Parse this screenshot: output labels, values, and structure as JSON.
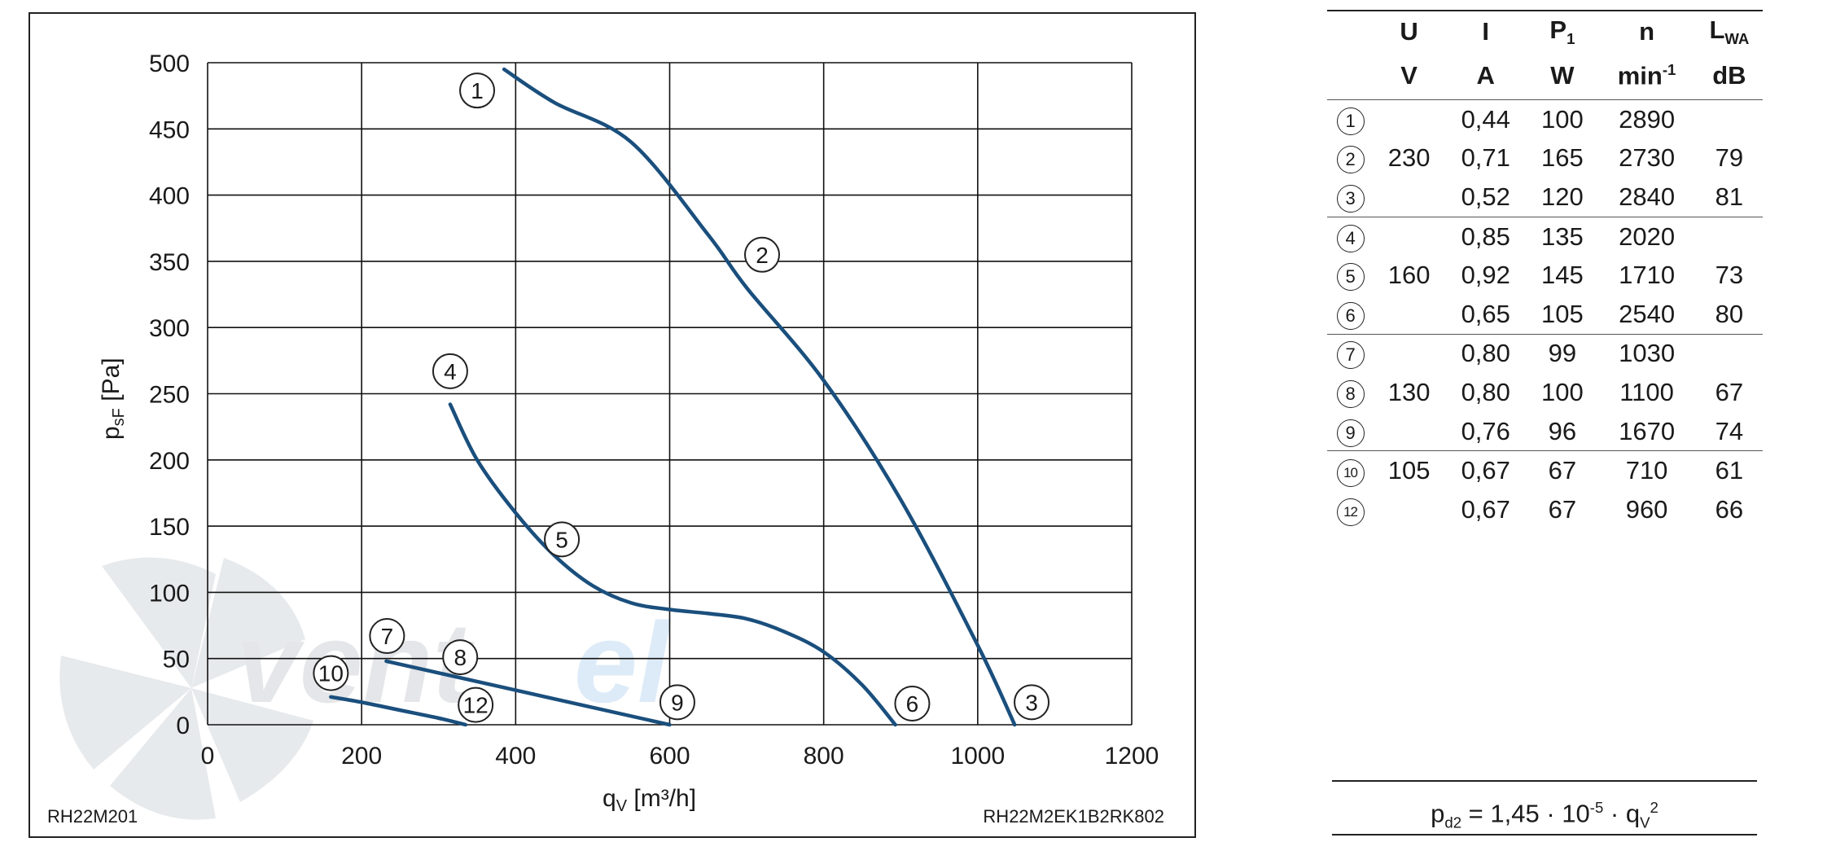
{
  "chart_data": {
    "type": "line",
    "xlabel": "qV [m³/h]",
    "ylabel": "psF [Pa]",
    "xlim": [
      0,
      1200
    ],
    "ylim": [
      0,
      500
    ],
    "x_ticks": [
      "0",
      "200",
      "400",
      "600",
      "800",
      "1000",
      "1200"
    ],
    "y_ticks": [
      "0",
      "50",
      "100",
      "150",
      "200",
      "250",
      "300",
      "350",
      "400",
      "450",
      "500"
    ],
    "grid": true,
    "series": [
      {
        "x": [
          385,
          450,
          550,
          650,
          700,
          800,
          900,
          1000,
          1048
        ],
        "y": [
          495,
          470,
          440,
          370,
          330,
          260,
          170,
          60,
          0
        ],
        "color": "#1a4f7d"
      },
      {
        "x": [
          315,
          350,
          400,
          450,
          500,
          550,
          600,
          650,
          700,
          750,
          800,
          850,
          893
        ],
        "y": [
          242,
          200,
          160,
          128,
          105,
          92,
          87,
          84,
          80,
          70,
          55,
          30,
          0
        ],
        "color": "#1a4f7d"
      },
      {
        "x": [
          232,
          600
        ],
        "y": [
          48,
          0
        ],
        "color": "#1a4f7d"
      },
      {
        "x": [
          160,
          200,
          250,
          300,
          335
        ],
        "y": [
          21,
          17,
          11,
          5,
          0
        ],
        "color": "#1a4f7d"
      }
    ],
    "markers": [
      {
        "label": "1",
        "x": 350,
        "y": 479
      },
      {
        "label": "2",
        "x": 720,
        "y": 355
      },
      {
        "label": "3",
        "x": 1070,
        "y": 17
      },
      {
        "label": "4",
        "x": 315,
        "y": 267
      },
      {
        "label": "5",
        "x": 460,
        "y": 140
      },
      {
        "label": "6",
        "x": 915,
        "y": 16
      },
      {
        "label": "7",
        "x": 233,
        "y": 67
      },
      {
        "label": "8",
        "x": 328,
        "y": 51
      },
      {
        "label": "9",
        "x": 610,
        "y": 17
      },
      {
        "label": "10",
        "x": 160,
        "y": 39
      },
      {
        "label": "12",
        "x": 348,
        "y": 15
      }
    ],
    "table": {
      "headers": [
        "U",
        "I",
        "P1",
        "n",
        "LWA"
      ],
      "units": [
        "V",
        "A",
        "W",
        "min-1",
        "dB"
      ],
      "groups": [
        {
          "voltage": "230",
          "rows": [
            {
              "id": "1",
              "I": "0,44",
              "P1": "100",
              "n": "2890",
              "LWA": ""
            },
            {
              "id": "2",
              "I": "0,71",
              "P1": "165",
              "n": "2730",
              "LWA": "79"
            },
            {
              "id": "3",
              "I": "0,52",
              "P1": "120",
              "n": "2840",
              "LWA": "81"
            }
          ]
        },
        {
          "voltage": "160",
          "rows": [
            {
              "id": "4",
              "I": "0,85",
              "P1": "135",
              "n": "2020",
              "LWA": ""
            },
            {
              "id": "5",
              "I": "0,92",
              "P1": "145",
              "n": "1710",
              "LWA": "73"
            },
            {
              "id": "6",
              "I": "0,65",
              "P1": "105",
              "n": "2540",
              "LWA": "80"
            }
          ]
        },
        {
          "voltage": "130",
          "rows": [
            {
              "id": "7",
              "I": "0,80",
              "P1": "99",
              "n": "1030",
              "LWA": ""
            },
            {
              "id": "8",
              "I": "0,80",
              "P1": "100",
              "n": "1100",
              "LWA": "67"
            },
            {
              "id": "9",
              "I": "0,76",
              "P1": "96",
              "n": "1670",
              "LWA": "74"
            }
          ]
        },
        {
          "voltage": "105",
          "rows": [
            {
              "id": "10",
              "I": "0,67",
              "P1": "67",
              "n": "710",
              "LWA": "61"
            },
            {
              "id": "12",
              "I": "0,67",
              "P1": "67",
              "n": "960",
              "LWA": "66"
            }
          ]
        }
      ]
    }
  },
  "labels": {
    "model_left": "RH22M201",
    "model_right": "RH22M2EK1B2RK802",
    "formula": "pd2 = 1,45 · 10-5 · qV2",
    "watermark": "ventel"
  },
  "colors": {
    "curve": "#1a4f7d",
    "grid": "#111111",
    "watermark": "#9aa6b4"
  }
}
